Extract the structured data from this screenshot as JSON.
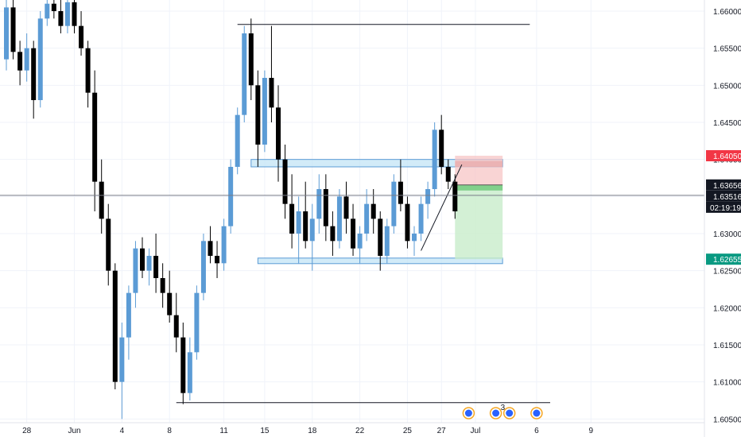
{
  "chart_data": {
    "type": "candlestick",
    "title": "",
    "xlabel": "",
    "ylabel": "",
    "ylim": [
      1.6045,
      1.6615
    ],
    "y_scale": "linear",
    "grid": true,
    "price_axis_position": "right",
    "y_ticks": [
      "1.66000",
      "1.65500",
      "1.65000",
      "1.64500",
      "1.64000",
      "1.63500",
      "1.63000",
      "1.62500",
      "1.62000",
      "1.61500",
      "1.61000",
      "1.60500"
    ],
    "x_ticks": [
      {
        "label": "28",
        "bar": 3
      },
      {
        "label": "Jun",
        "bar": 10
      },
      {
        "label": "4",
        "bar": 17
      },
      {
        "label": "8",
        "bar": 24
      },
      {
        "label": "11",
        "bar": 32
      },
      {
        "label": "15",
        "bar": 38
      },
      {
        "label": "18",
        "bar": 45
      },
      {
        "label": "22",
        "bar": 52
      },
      {
        "label": "25",
        "bar": 59
      },
      {
        "label": "27",
        "bar": 64
      },
      {
        "label": "Jul",
        "bar": 69
      },
      {
        "label": "6",
        "bar": 78
      },
      {
        "label": "9",
        "bar": 86
      }
    ],
    "candles": [
      [
        1.6535,
        1.662,
        1.652,
        1.6605
      ],
      [
        1.6605,
        1.6615,
        1.6535,
        1.6545
      ],
      [
        1.6545,
        1.656,
        1.65,
        1.652
      ],
      [
        1.652,
        1.657,
        1.6505,
        1.655
      ],
      [
        1.655,
        1.656,
        1.6455,
        1.648
      ],
      [
        1.648,
        1.66,
        1.647,
        1.659
      ],
      [
        1.659,
        1.662,
        1.658,
        1.661
      ],
      [
        1.661,
        1.662,
        1.659,
        1.66
      ],
      [
        1.66,
        1.6615,
        1.657,
        1.658
      ],
      [
        1.658,
        1.6615,
        1.657,
        1.6612
      ],
      [
        1.6612,
        1.662,
        1.657,
        1.658
      ],
      [
        1.658,
        1.66,
        1.654,
        1.655
      ],
      [
        1.655,
        1.656,
        1.647,
        1.649
      ],
      [
        1.649,
        1.652,
        1.633,
        1.637
      ],
      [
        1.637,
        1.64,
        1.63,
        1.632
      ],
      [
        1.632,
        1.634,
        1.623,
        1.625
      ],
      [
        1.625,
        1.626,
        1.609,
        1.61
      ],
      [
        1.61,
        1.618,
        1.605,
        1.616
      ],
      [
        1.616,
        1.623,
        1.613,
        1.622
      ],
      [
        1.622,
        1.629,
        1.62,
        1.628
      ],
      [
        1.628,
        1.6295,
        1.624,
        1.625
      ],
      [
        1.625,
        1.628,
        1.623,
        1.627
      ],
      [
        1.627,
        1.63,
        1.622,
        1.624
      ],
      [
        1.624,
        1.626,
        1.62,
        1.622
      ],
      [
        1.622,
        1.625,
        1.618,
        1.619
      ],
      [
        1.619,
        1.622,
        1.614,
        1.616
      ],
      [
        1.616,
        1.618,
        1.607,
        1.6085
      ],
      [
        1.6085,
        1.616,
        1.6075,
        1.614
      ],
      [
        1.614,
        1.623,
        1.613,
        1.622
      ],
      [
        1.622,
        1.63,
        1.621,
        1.629
      ],
      [
        1.629,
        1.631,
        1.626,
        1.627
      ],
      [
        1.627,
        1.629,
        1.624,
        1.626
      ],
      [
        1.626,
        1.632,
        1.625,
        1.631
      ],
      [
        1.631,
        1.64,
        1.63,
        1.639
      ],
      [
        1.639,
        1.647,
        1.638,
        1.646
      ],
      [
        1.646,
        1.658,
        1.645,
        1.657
      ],
      [
        1.657,
        1.659,
        1.648,
        1.65
      ],
      [
        1.65,
        1.652,
        1.639,
        1.642
      ],
      [
        1.642,
        1.652,
        1.641,
        1.651
      ],
      [
        1.651,
        1.658,
        1.645,
        1.647
      ],
      [
        1.647,
        1.65,
        1.637,
        1.64
      ],
      [
        1.64,
        1.642,
        1.632,
        1.634
      ],
      [
        1.634,
        1.638,
        1.628,
        1.63
      ],
      [
        1.63,
        1.635,
        1.626,
        1.633
      ],
      [
        1.633,
        1.637,
        1.628,
        1.629
      ],
      [
        1.629,
        1.634,
        1.625,
        1.632
      ],
      [
        1.632,
        1.638,
        1.63,
        1.636
      ],
      [
        1.636,
        1.638,
        1.629,
        1.631
      ],
      [
        1.631,
        1.633,
        1.627,
        1.629
      ],
      [
        1.629,
        1.636,
        1.628,
        1.635
      ],
      [
        1.635,
        1.637,
        1.63,
        1.632
      ],
      [
        1.632,
        1.634,
        1.627,
        1.628
      ],
      [
        1.628,
        1.631,
        1.626,
        1.63
      ],
      [
        1.63,
        1.636,
        1.629,
        1.634
      ],
      [
        1.634,
        1.636,
        1.63,
        1.632
      ],
      [
        1.632,
        1.633,
        1.625,
        1.627
      ],
      [
        1.627,
        1.632,
        1.626,
        1.631
      ],
      [
        1.631,
        1.638,
        1.63,
        1.637
      ],
      [
        1.637,
        1.64,
        1.633,
        1.634
      ],
      [
        1.634,
        1.635,
        1.628,
        1.629
      ],
      [
        1.629,
        1.631,
        1.627,
        1.63
      ],
      [
        1.63,
        1.635,
        1.629,
        1.634
      ],
      [
        1.634,
        1.637,
        1.632,
        1.636
      ],
      [
        1.636,
        1.645,
        1.635,
        1.644
      ],
      [
        1.644,
        1.646,
        1.638,
        1.639
      ],
      [
        1.639,
        1.64,
        1.636,
        1.637
      ],
      [
        1.637,
        1.638,
        1.632,
        1.633
      ]
    ],
    "horizontal_lines": [
      {
        "price": 1.6582,
        "from_bar": 34,
        "to_bar": 77
      },
      {
        "price": 1.6072,
        "from_bar": 25,
        "to_bar": 80
      }
    ],
    "zones": [
      {
        "from_bar": 36,
        "to_bar": 73,
        "low": 1.639,
        "high": 1.64
      },
      {
        "from_bar": 37,
        "to_bar": 73,
        "low": 1.626,
        "high": 1.6267
      }
    ],
    "trendline": {
      "from_bar": 61,
      "from_price": 1.6277,
      "to_bar": 67,
      "to_price": 1.6393
    },
    "position": {
      "from_bar": 66,
      "to_bar": 73,
      "stop": 1.6405,
      "entry": 1.63656,
      "target": 1.62655,
      "stop_label": "1.64050",
      "entry_label": "1.63656",
      "target_label": "1.62655"
    },
    "current": {
      "price": 1.63516,
      "label": "1.63516",
      "countdown": "02:19:19"
    },
    "events": [
      {
        "bar": 68,
        "count": ""
      },
      {
        "bar": 72,
        "count": "3"
      },
      {
        "bar": 74,
        "count": ""
      },
      {
        "bar": 78,
        "count": ""
      }
    ]
  },
  "colors": {
    "background": "#ffffff",
    "up": "#5b9bd5",
    "down": "#000000",
    "grid": "#f0f3fa",
    "zone_fill": "#bfe3f5",
    "zone_border": "#5b9bd5",
    "stop_fill": "#f7c5c5",
    "stop_tag": "#f23645",
    "target_fill": "#c8eccb",
    "target_tag": "#089981",
    "neutral_tag": "#131722",
    "crosshair": "#787b86",
    "event_ring": "#f5a623"
  }
}
